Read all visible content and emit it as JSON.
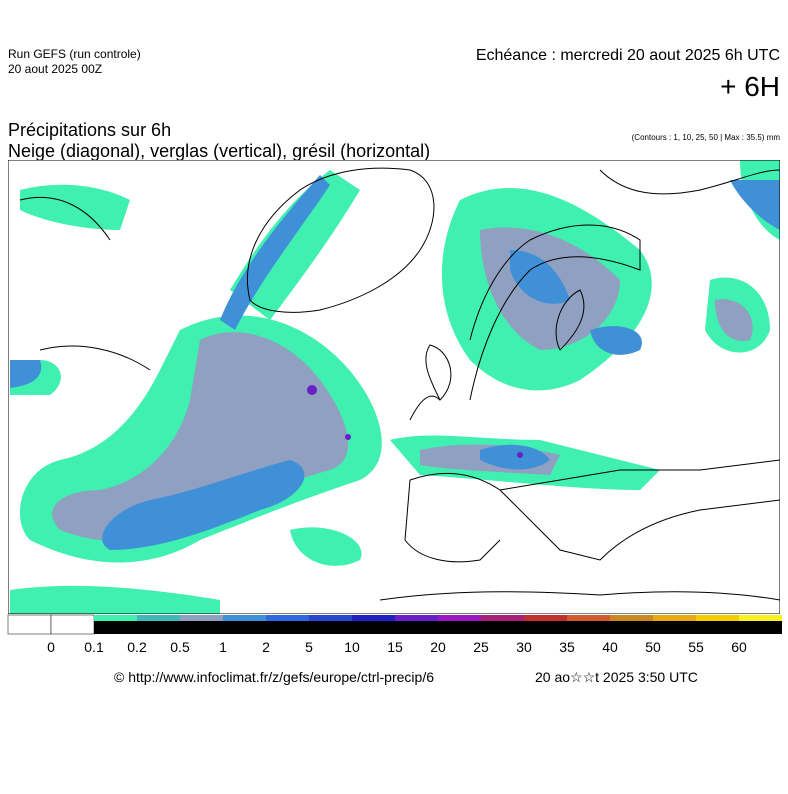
{
  "header": {
    "run": "Run GEFS (run controle)",
    "run_date": "20 aout 2025 00Z",
    "valid": "Echéance : mercredi 20 aout 2025 6h UTC",
    "lead": "+ 6H",
    "title": "Précipitations sur 6h",
    "subtitle": "Neige (diagonal), verglas (vertical), grésil (horizontal)",
    "contours": "(Contours : 1, 10, 25, 50 | Max : 35.5) mm"
  },
  "legend": {
    "labels": [
      0,
      0.1,
      0.2,
      0.5,
      1,
      2,
      5,
      10,
      15,
      20,
      25,
      30,
      35,
      40,
      50,
      55,
      60
    ],
    "colors": [
      "#ffffff",
      "#ffffff",
      "#3ff0b0",
      "#40b8b8",
      "#90a0c0",
      "#4090d8",
      "#3068e0",
      "#2848d0",
      "#2020c0",
      "#6a20c8",
      "#9a18c0",
      "#a8207a",
      "#c03030",
      "#d05a30",
      "#c88a20",
      "#e8a810",
      "#f4cc00",
      "#f8f020"
    ]
  },
  "footer": {
    "url": "© http://www.infoclimat.fr/z/gefs/europe/ctrl-precip/6",
    "stamp": "20 ao☆☆t 2025  3:50 UTC"
  }
}
